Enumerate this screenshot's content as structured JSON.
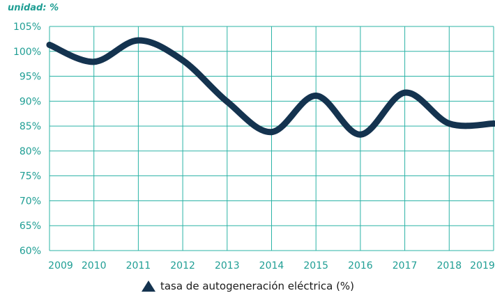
{
  "chart_data": {
    "type": "line",
    "unit_label": "unidad: %",
    "categories": [
      "2009",
      "2010",
      "2011",
      "2012",
      "2013",
      "2014",
      "2015",
      "2016",
      "2017",
      "2018",
      "2019"
    ],
    "ytick_labels": [
      "60%",
      "65%",
      "70%",
      "75%",
      "80%",
      "85%",
      "90%",
      "95%",
      "100%",
      "105%"
    ],
    "ylim": [
      60,
      105
    ],
    "grid": true,
    "legend_position": "bottom",
    "series": [
      {
        "name": "tasa de autogeneración eléctrica (%)",
        "values": [
          101.3,
          97.9,
          102.2,
          98.2,
          89.9,
          83.8,
          91.1,
          83.3,
          91.7,
          85.5,
          85.5
        ]
      }
    ],
    "colors": {
      "grid": "#2bb3a6",
      "tick_text": "#1f9e94",
      "line": "#14334f",
      "legend_text": "#1a1a1a"
    }
  }
}
